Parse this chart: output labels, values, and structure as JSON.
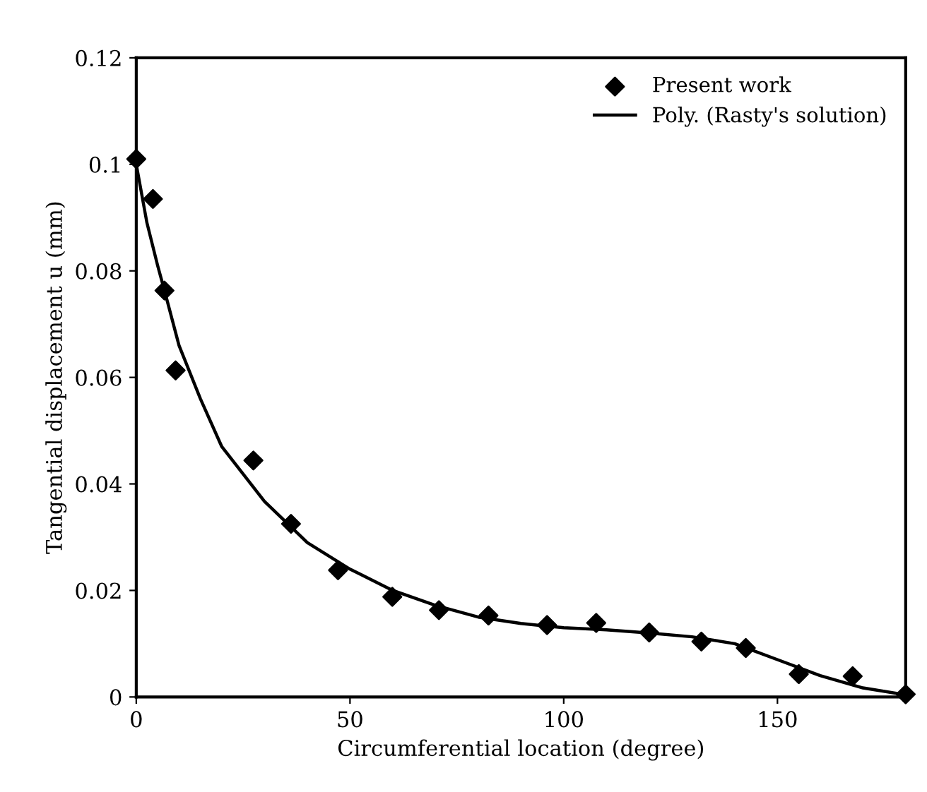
{
  "chart_data": {
    "type": "scatter",
    "xlabel": "Circumferential location (degree)",
    "ylabel": "Tangential displacement u (mm)",
    "xlim": [
      0,
      180
    ],
    "ylim": [
      0,
      0.12
    ],
    "xticks": [
      0,
      50,
      100,
      150
    ],
    "yticks": [
      0,
      0.02,
      0.04,
      0.06,
      0.08,
      {
        "value": 0.1,
        "label": "0.1"
      },
      0.12
    ],
    "grid": false,
    "legend": "top right",
    "series": [
      {
        "name": "Present work",
        "marker": "diamond",
        "color": "#000000",
        "x": [
          0,
          3.9,
          6.6,
          9.2,
          27.4,
          36.2,
          47.2,
          59.9,
          70.8,
          82.4,
          96.1,
          107.6,
          120,
          132.2,
          142.6,
          155,
          167.6,
          180
        ],
        "values": [
          0.101,
          0.0935,
          0.0763,
          0.0613,
          0.0444,
          0.0325,
          0.0238,
          0.0188,
          0.0163,
          0.0153,
          0.0135,
          0.0139,
          0.0121,
          0.0104,
          0.0092,
          0.0043,
          0.0039,
          0.0005
        ]
      },
      {
        "name": "Poly. (Rasty's solution)",
        "type": "line",
        "marker": "none",
        "color": "#000000",
        "line_style": "solid",
        "x": [
          0,
          2.5,
          5,
          6.6,
          10,
          15,
          20,
          30,
          40,
          50,
          60,
          70,
          80,
          90,
          100,
          110,
          120,
          130,
          140,
          150,
          160,
          170,
          180
        ],
        "values": [
          0.1,
          0.089,
          0.081,
          0.0763,
          0.066,
          0.056,
          0.047,
          0.0367,
          0.029,
          0.024,
          0.02,
          0.0172,
          0.015,
          0.0138,
          0.013,
          0.0126,
          0.012,
          0.0113,
          0.01,
          0.007,
          0.004,
          0.0017,
          0.0004
        ]
      }
    ]
  }
}
